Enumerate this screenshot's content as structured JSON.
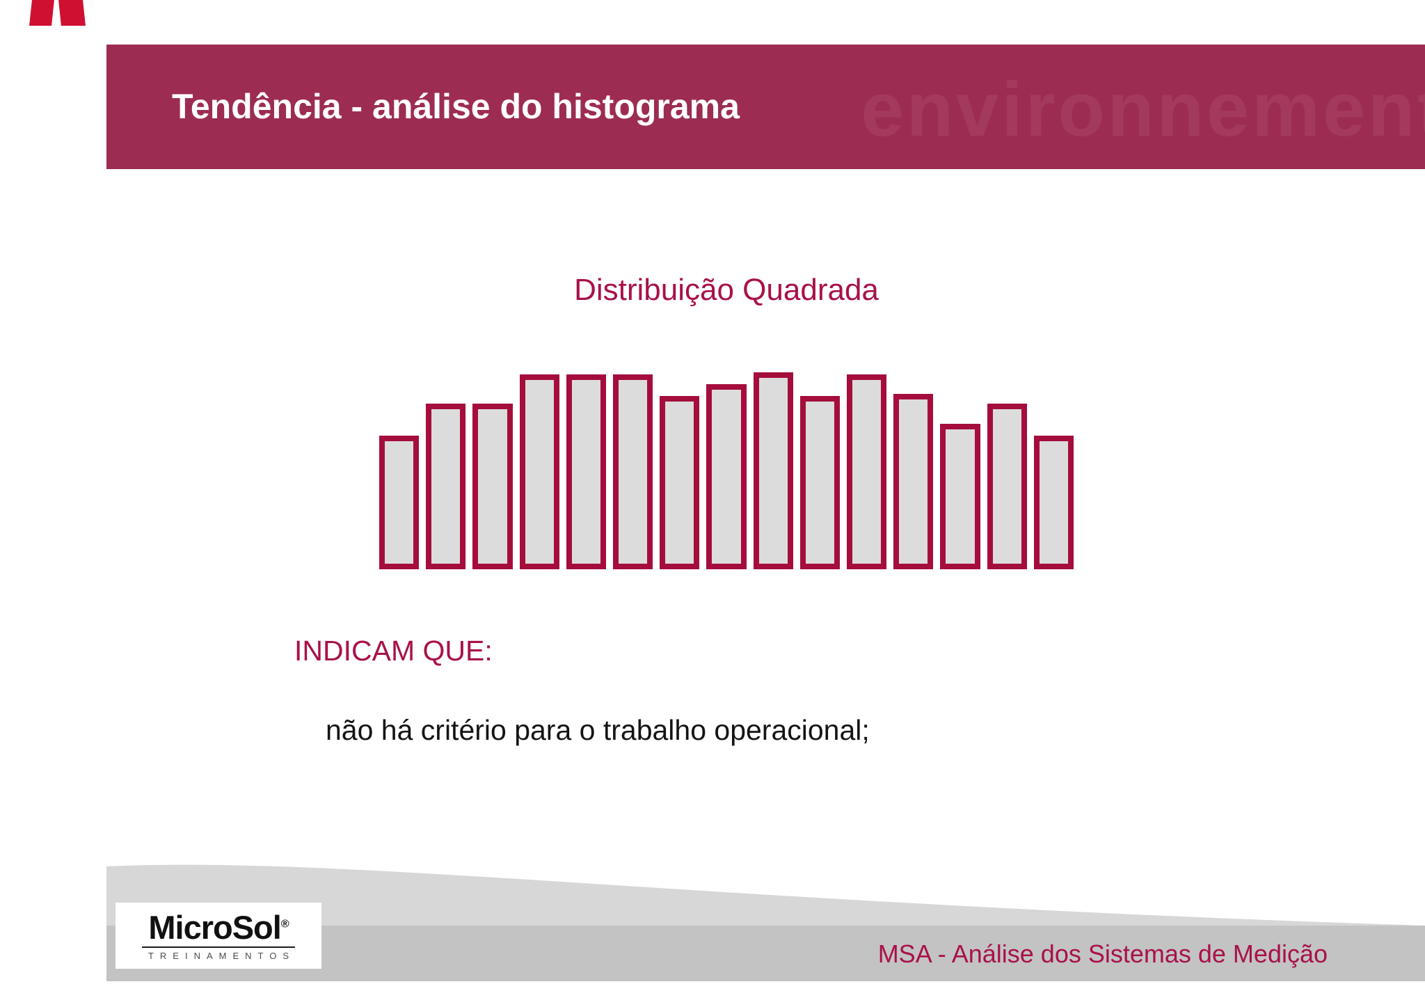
{
  "header": {
    "title": "Tendência - análise do histograma",
    "watermark": "environnement"
  },
  "content": {
    "heading": "INDICAM QUE:",
    "body": "não há critério para o trabalho operacional;"
  },
  "footer": {
    "text": "MSA - Análise dos Sistemas de Medição",
    "logo": {
      "name": "MicroSol",
      "registered": "®",
      "subtitle": "TREINAMENTOS"
    }
  },
  "colors": {
    "header_bg": "#9d2c52",
    "accent_text": "#a8114a",
    "bar_border": "#a50d3c",
    "bar_fill": "#dcdcdc",
    "band_gray": "#c3c3c3",
    "swoosh_gray": "#d7d7d7",
    "corner_mark": "#d01030"
  },
  "chart_data": {
    "type": "bar",
    "title": "Distribuição Quadrada",
    "values": [
      68,
      84,
      84,
      99,
      99,
      99,
      88,
      94,
      100,
      88,
      99,
      89,
      74,
      84,
      68
    ],
    "xlabel": "",
    "ylabel": "",
    "tick_labels": [],
    "grid": false,
    "legend": false
  }
}
